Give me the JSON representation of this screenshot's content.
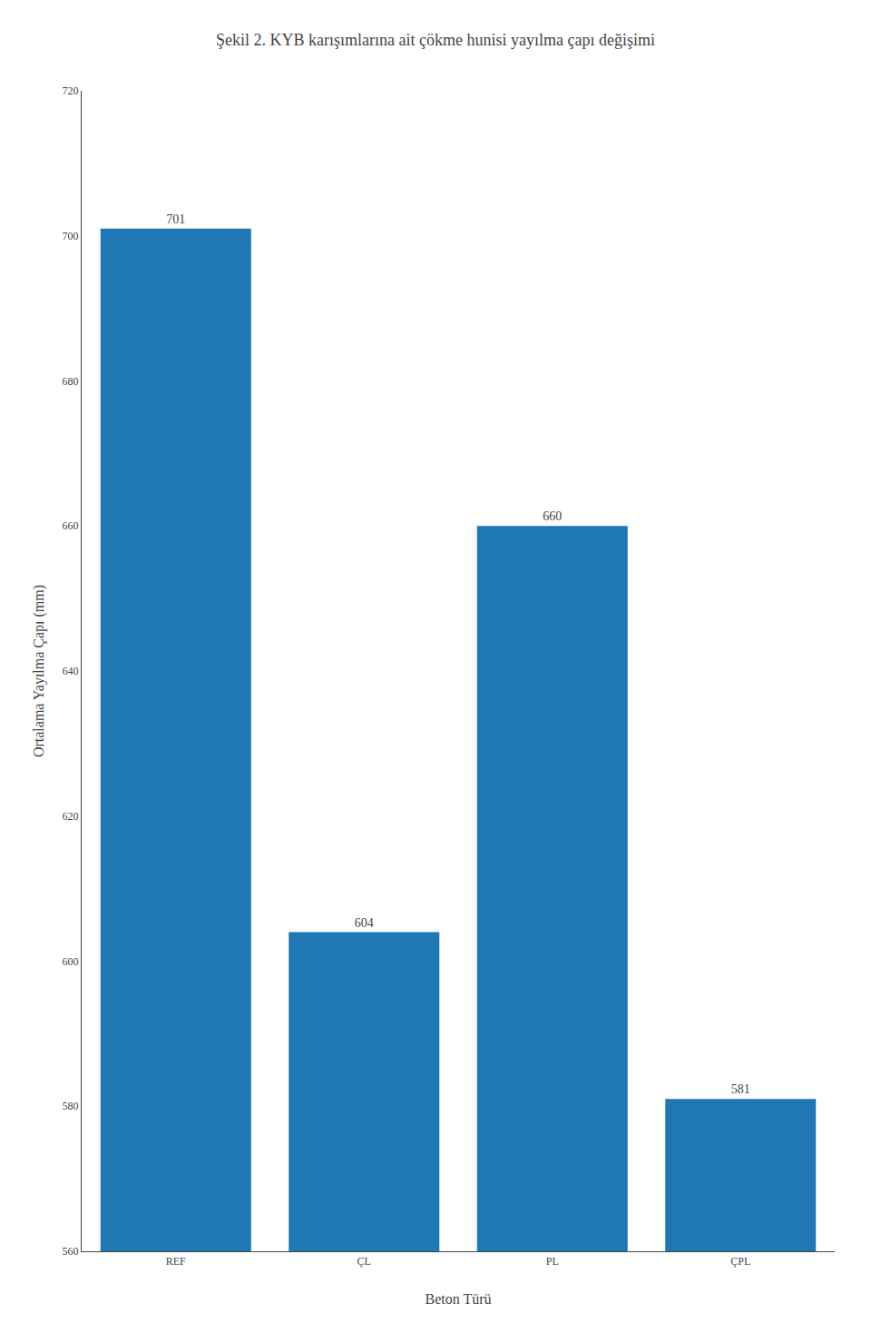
{
  "chart_data": {
    "type": "bar",
    "title": "Şekil 2. KYB karışımlarına ait çökme hunisi yayılma çapı değişimi",
    "xlabel": "Beton Türü",
    "ylabel": "Ortalama Yayılma Çapı (mm)",
    "categories": [
      "REF",
      "ÇL",
      "PL",
      "ÇPL"
    ],
    "values": [
      701,
      604,
      660,
      581
    ],
    "ylim": [
      560,
      720
    ],
    "yticks": [
      560,
      580,
      600,
      620,
      640,
      660,
      680,
      700,
      720
    ],
    "grid": false,
    "data_labels": true
  }
}
